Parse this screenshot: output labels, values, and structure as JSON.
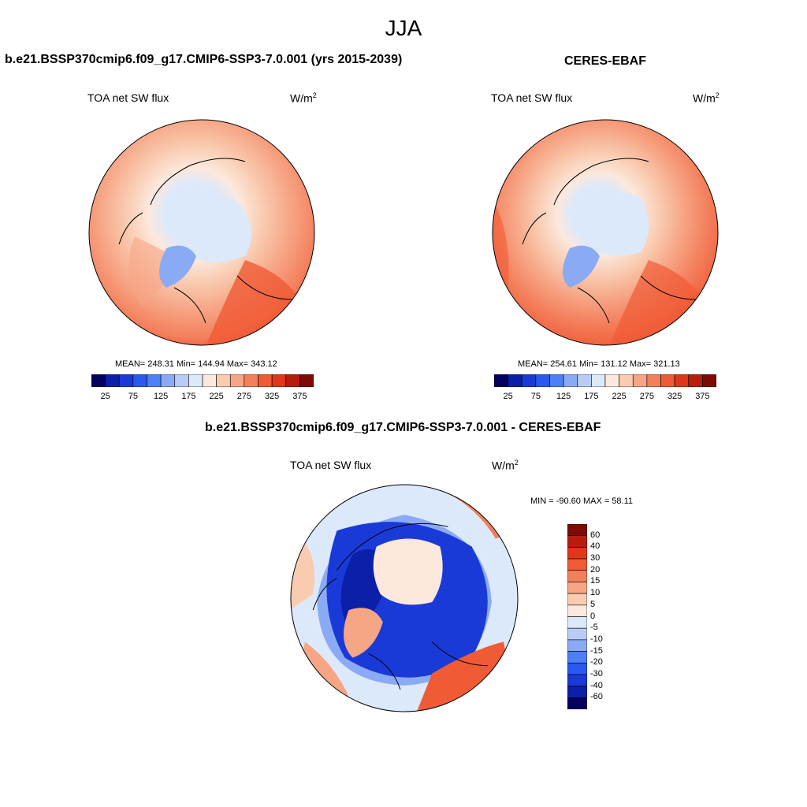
{
  "title": "JJA",
  "variable": "TOA net SW flux",
  "units_base": "W/m",
  "units_exp": "2",
  "panels": [
    {
      "case": "b.e21.BSSP370cmip6.f09_g17.CMIP6-SSP3-7.0.001 (yrs 2015-2039)",
      "stats": "MEAN= 248.31  Min= 144.94  Max= 343.12"
    },
    {
      "case": "CERES-EBAF",
      "stats": "MEAN= 254.61  Min= 131.12  Max= 321.13"
    }
  ],
  "diff": {
    "case": "b.e21.BSSP370cmip6.f09_g17.CMIP6-SSP3-7.0.001 - CERES-EBAF",
    "stats": "MIN = -90.60 MAX =  58.11"
  },
  "colorbar": {
    "ticks": [
      "25",
      "75",
      "125",
      "175",
      "225",
      "275",
      "325",
      "375"
    ],
    "colors": [
      "#04005e",
      "#0c1fa8",
      "#1a3ad8",
      "#2a58f0",
      "#4e7ff6",
      "#8aaaf4",
      "#b8ccf6",
      "#dce9fb",
      "#fce8dc",
      "#f9cbb0",
      "#f6a585",
      "#f47f5c",
      "#f05a34",
      "#e0361a",
      "#b81c0c",
      "#7e0a05"
    ]
  },
  "diff_colorbar": {
    "ticks": [
      "60",
      "40",
      "30",
      "20",
      "15",
      "10",
      "5",
      "0",
      "-5",
      "-10",
      "-15",
      "-20",
      "-30",
      "-40",
      "-60"
    ],
    "colors": [
      "#7e0a05",
      "#b81c0c",
      "#e0361a",
      "#f05a34",
      "#f47f5c",
      "#f6a585",
      "#f9cbb0",
      "#fce8dc",
      "#dce9fb",
      "#b8ccf6",
      "#8aaaf4",
      "#4e7ff6",
      "#2a58f0",
      "#1a3ad8",
      "#0c1fa8",
      "#04005e"
    ]
  }
}
